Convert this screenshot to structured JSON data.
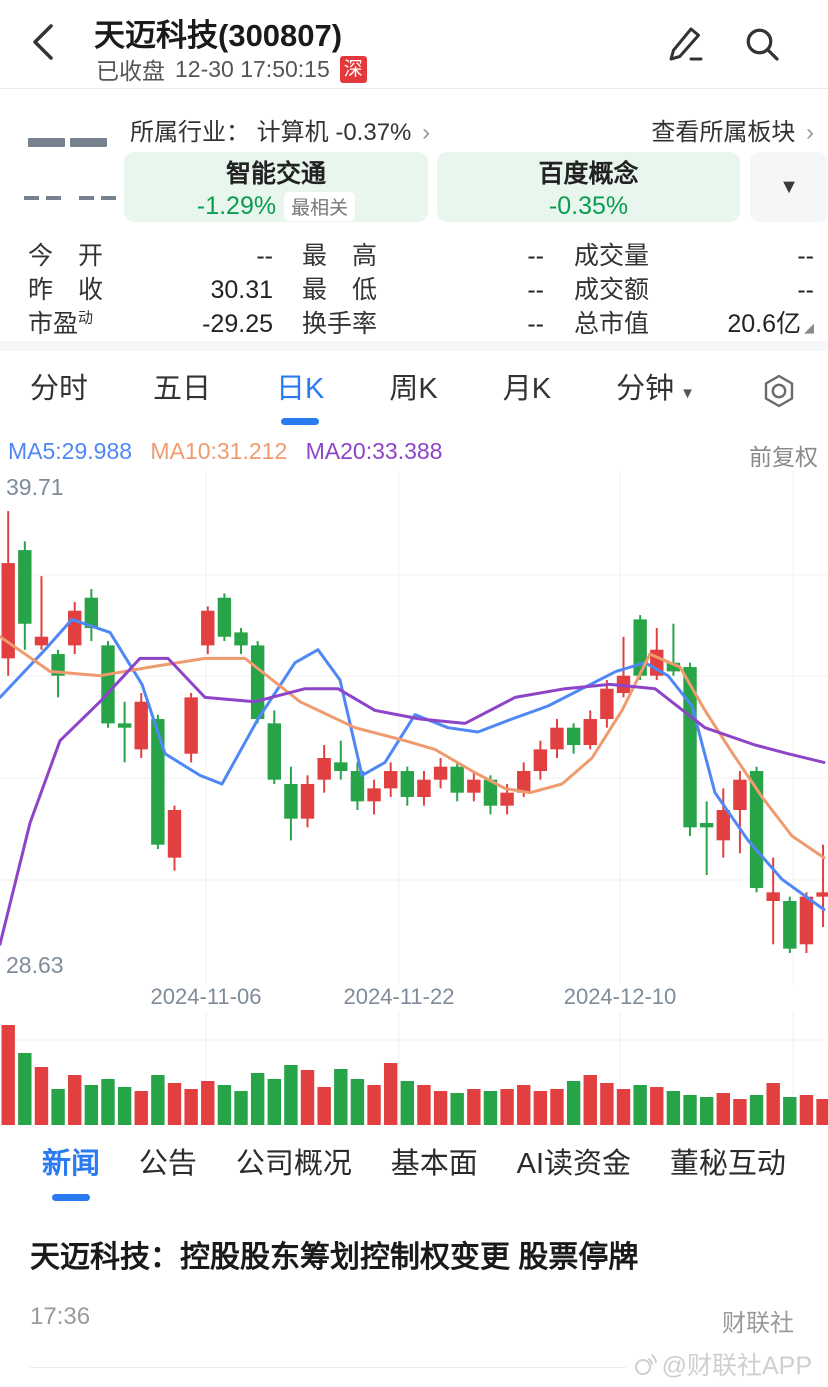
{
  "colors": {
    "up": "#e24040",
    "down": "#27a348",
    "ma5": "#4f87f5",
    "ma10": "#f09a6f",
    "ma20": "#8e44c8",
    "accent": "#2a7af2",
    "green_text": "#0a9d4f",
    "badge_red": "#e4393c"
  },
  "header": {
    "back_icon": "‹",
    "title": "天迈科技(300807)",
    "status": "已收盘",
    "time": "12-30 17:50:15",
    "exchange_badge": "深"
  },
  "quote_placeholder": {
    "price": "— —",
    "change": "-- --"
  },
  "industry": {
    "label": "所属行业：",
    "value": "计算机 -0.37%",
    "chevron": "›",
    "view_sector": "查看所属板块"
  },
  "concepts": {
    "first": {
      "name": "智能交通",
      "change": "-1.29%",
      "tag": "最相关"
    },
    "second": {
      "name": "百度概念",
      "change": "-0.35%"
    },
    "dropdown_icon": "▼"
  },
  "stats": {
    "col1": [
      {
        "l": "今　开",
        "v": "--"
      },
      {
        "l": "昨　收",
        "v": "30.31"
      },
      {
        "l": "市盈",
        "sup": "动",
        "v": "-29.25"
      }
    ],
    "col2": [
      {
        "l": "最　高",
        "v": "--"
      },
      {
        "l": "最　低",
        "v": "--"
      },
      {
        "l": "换手率",
        "v": "--"
      }
    ],
    "col3": [
      {
        "l": "成交量",
        "v": "--"
      },
      {
        "l": "成交额",
        "v": "--"
      },
      {
        "l": "总市值",
        "v": "20.6亿",
        "expand_icon": "◢"
      }
    ]
  },
  "k_tabs": {
    "items": [
      "分时",
      "五日",
      "日K",
      "周K",
      "月K",
      "分钟"
    ],
    "active": "日K",
    "minute_dropdown_icon": "▼"
  },
  "ma_row": {
    "ma5": "MA5:29.988",
    "ma10": "MA10:31.212",
    "ma20": "MA20:33.388",
    "adjust": "前复权"
  },
  "chart_data": {
    "type": "candlestick",
    "title": "天迈科技(300807) 日K 前复权",
    "ylim": [
      28.63,
      39.71
    ],
    "y_axis_labels": {
      "max": "39.71",
      "min": "28.63"
    },
    "dates_axis": [
      "2024-11-06",
      "2024-11-22",
      "2024-12-10"
    ],
    "ma_values": {
      "MA5": 29.988,
      "MA10": 31.212,
      "MA20": 33.388
    },
    "candles": [
      [
        35.8,
        39.2,
        35.4,
        38.0
      ],
      [
        38.3,
        38.5,
        36.0,
        36.6
      ],
      [
        36.1,
        37.7,
        36.0,
        36.3
      ],
      [
        35.9,
        36.0,
        34.9,
        35.4
      ],
      [
        36.1,
        37.1,
        35.9,
        36.9
      ],
      [
        37.2,
        37.4,
        36.2,
        36.5
      ],
      [
        36.1,
        36.2,
        34.2,
        34.3
      ],
      [
        34.3,
        34.8,
        33.4,
        34.2
      ],
      [
        33.7,
        35.0,
        33.5,
        34.8
      ],
      [
        34.4,
        34.5,
        31.4,
        31.5
      ],
      [
        31.2,
        32.4,
        30.9,
        32.3
      ],
      [
        33.6,
        35.0,
        33.4,
        34.9
      ],
      [
        36.1,
        37.0,
        35.9,
        36.9
      ],
      [
        37.2,
        37.3,
        36.2,
        36.3
      ],
      [
        36.4,
        36.5,
        35.9,
        36.1
      ],
      [
        36.1,
        36.2,
        34.3,
        34.4
      ],
      [
        34.3,
        34.6,
        32.9,
        33.0
      ],
      [
        32.9,
        33.3,
        31.6,
        32.1
      ],
      [
        32.1,
        33.1,
        31.9,
        32.9
      ],
      [
        33.0,
        33.8,
        32.7,
        33.5
      ],
      [
        33.4,
        33.9,
        33.0,
        33.2
      ],
      [
        33.2,
        33.4,
        32.3,
        32.5
      ],
      [
        32.5,
        33.0,
        32.2,
        32.8
      ],
      [
        32.8,
        33.4,
        32.6,
        33.2
      ],
      [
        33.2,
        33.3,
        32.4,
        32.6
      ],
      [
        32.6,
        33.2,
        32.4,
        33.0
      ],
      [
        33.0,
        33.5,
        32.8,
        33.3
      ],
      [
        33.3,
        33.4,
        32.5,
        32.7
      ],
      [
        32.7,
        33.2,
        32.5,
        33.0
      ],
      [
        33.0,
        33.1,
        32.2,
        32.4
      ],
      [
        32.4,
        32.9,
        32.2,
        32.7
      ],
      [
        32.7,
        33.4,
        32.6,
        33.2
      ],
      [
        33.2,
        33.9,
        33.0,
        33.7
      ],
      [
        33.7,
        34.4,
        33.5,
        34.2
      ],
      [
        34.2,
        34.3,
        33.6,
        33.8
      ],
      [
        33.8,
        34.6,
        33.7,
        34.4
      ],
      [
        34.4,
        35.3,
        34.2,
        35.1
      ],
      [
        35.0,
        36.3,
        34.9,
        35.4
      ],
      [
        36.7,
        36.8,
        35.3,
        35.4
      ],
      [
        35.4,
        36.5,
        35.3,
        36.0
      ],
      [
        35.7,
        36.6,
        35.4,
        35.5
      ],
      [
        35.6,
        35.7,
        31.7,
        31.9
      ],
      [
        32.0,
        32.5,
        30.8,
        31.9
      ],
      [
        31.6,
        32.8,
        31.2,
        32.3
      ],
      [
        32.3,
        33.2,
        31.3,
        33.0
      ],
      [
        33.2,
        33.3,
        30.4,
        30.5
      ],
      [
        30.2,
        31.2,
        29.2,
        30.4
      ],
      [
        30.2,
        30.3,
        29.0,
        29.1
      ],
      [
        29.2,
        30.4,
        29.0,
        30.3
      ],
      [
        30.3,
        31.5,
        29.6,
        30.4
      ]
    ],
    "volume_rel": [
      1.0,
      0.72,
      0.58,
      0.36,
      0.5,
      0.4,
      0.46,
      0.38,
      0.34,
      0.5,
      0.42,
      0.36,
      0.44,
      0.4,
      0.34,
      0.52,
      0.46,
      0.6,
      0.55,
      0.38,
      0.56,
      0.46,
      0.4,
      0.62,
      0.44,
      0.4,
      0.34,
      0.32,
      0.36,
      0.34,
      0.36,
      0.4,
      0.34,
      0.36,
      0.44,
      0.5,
      0.42,
      0.36,
      0.4,
      0.38,
      0.34,
      0.3,
      0.28,
      0.32,
      0.26,
      0.3,
      0.42,
      0.28,
      0.3,
      0.26
    ],
    "ma_lines": [
      {
        "name": "MA5",
        "color": "#4f87f5",
        "points": [
          [
            0,
            34.9
          ],
          [
            45,
            36.0
          ],
          [
            72,
            36.7
          ],
          [
            110,
            36.4
          ],
          [
            142,
            35.2
          ],
          [
            165,
            33.6
          ],
          [
            200,
            33.1
          ],
          [
            222,
            32.9
          ],
          [
            258,
            34.4
          ],
          [
            295,
            35.7
          ],
          [
            318,
            36.0
          ],
          [
            340,
            35.3
          ],
          [
            362,
            33.1
          ],
          [
            385,
            33.4
          ],
          [
            415,
            34.5
          ],
          [
            448,
            34.2
          ],
          [
            478,
            34.1
          ],
          [
            512,
            34.4
          ],
          [
            548,
            34.7
          ],
          [
            582,
            35.1
          ],
          [
            616,
            35.5
          ],
          [
            645,
            35.7
          ],
          [
            668,
            35.4
          ],
          [
            692,
            34.7
          ],
          [
            715,
            32.7
          ],
          [
            748,
            31.6
          ],
          [
            782,
            30.7
          ],
          [
            806,
            30.3
          ],
          [
            824,
            30.0
          ]
        ]
      },
      {
        "name": "MA10",
        "color": "#f09a6f",
        "points": [
          [
            0,
            36.3
          ],
          [
            50,
            35.5
          ],
          [
            100,
            35.4
          ],
          [
            150,
            35.6
          ],
          [
            205,
            35.8
          ],
          [
            245,
            35.8
          ],
          [
            300,
            34.8
          ],
          [
            355,
            34.2
          ],
          [
            405,
            33.9
          ],
          [
            435,
            33.7
          ],
          [
            472,
            33.2
          ],
          [
            505,
            32.8
          ],
          [
            530,
            32.7
          ],
          [
            562,
            32.9
          ],
          [
            592,
            33.5
          ],
          [
            622,
            34.6
          ],
          [
            650,
            35.9
          ],
          [
            680,
            35.6
          ],
          [
            705,
            34.6
          ],
          [
            730,
            33.7
          ],
          [
            762,
            32.6
          ],
          [
            792,
            31.7
          ],
          [
            824,
            31.2
          ]
        ]
      },
      {
        "name": "MA20",
        "color": "#8e44c8",
        "points": [
          [
            0,
            29.2
          ],
          [
            30,
            32.0
          ],
          [
            60,
            33.9
          ],
          [
            100,
            34.8
          ],
          [
            140,
            35.8
          ],
          [
            168,
            35.8
          ],
          [
            205,
            34.9
          ],
          [
            255,
            34.8
          ],
          [
            305,
            35.1
          ],
          [
            338,
            35.1
          ],
          [
            375,
            34.6
          ],
          [
            420,
            34.4
          ],
          [
            465,
            34.3
          ],
          [
            515,
            34.9
          ],
          [
            565,
            35.1
          ],
          [
            610,
            35.2
          ],
          [
            655,
            35.1
          ],
          [
            705,
            34.2
          ],
          [
            755,
            33.8
          ],
          [
            788,
            33.6
          ],
          [
            824,
            33.4
          ]
        ]
      }
    ]
  },
  "bottom_tabs": {
    "items": [
      "新闻",
      "公告",
      "公司概况",
      "基本面",
      "AI读资金",
      "董秘互动"
    ],
    "active": "新闻"
  },
  "news": {
    "headline": "天迈科技：控股股东筹划控制权变更 股票停牌",
    "time": "17:36",
    "source": "财联社"
  },
  "watermark": {
    "text": "@财联社APP"
  }
}
